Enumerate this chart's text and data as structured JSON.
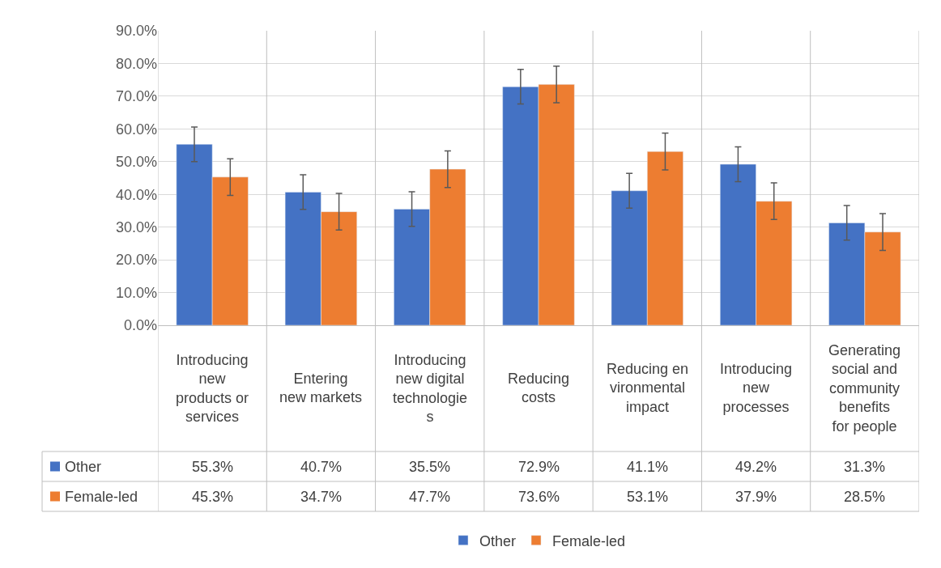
{
  "chart_data": {
    "type": "bar",
    "categories": [
      "Introducing new products or services",
      "Entering new markets",
      "Introducing new digital technologies",
      "Reducing costs",
      "Reducing environmental impact",
      "Introducing new processes",
      "Generating social and community benefits for people"
    ],
    "series": [
      {
        "name": "Other",
        "color": "#4472c4",
        "values": [
          55.3,
          40.7,
          35.5,
          72.9,
          41.1,
          49.2,
          31.3
        ],
        "errors": [
          5.3,
          5.3,
          5.3,
          5.3,
          5.3,
          5.3,
          5.3
        ],
        "value_labels": [
          "55.3%",
          "40.7%",
          "35.5%",
          "72.9%",
          "41.1%",
          "49.2%",
          "31.3%"
        ]
      },
      {
        "name": "Female-led",
        "color": "#ed7d31",
        "values": [
          45.3,
          34.7,
          47.7,
          73.6,
          53.1,
          37.9,
          28.5
        ],
        "errors": [
          5.6,
          5.6,
          5.6,
          5.6,
          5.6,
          5.6,
          5.6
        ],
        "value_labels": [
          "45.3%",
          "34.7%",
          "47.7%",
          "73.6%",
          "53.1%",
          "37.9%",
          "28.5%"
        ]
      }
    ],
    "ylim": [
      0,
      90
    ],
    "yticks": [
      {
        "value": 0,
        "label": "0.0%"
      },
      {
        "value": 10,
        "label": "10.0%"
      },
      {
        "value": 20,
        "label": "20.0%"
      },
      {
        "value": 30,
        "label": "30.0%"
      },
      {
        "value": 40,
        "label": "40.0%"
      },
      {
        "value": 50,
        "label": "50.0%"
      },
      {
        "value": 60,
        "label": "60.0%"
      },
      {
        "value": 70,
        "label": "70.0%"
      },
      {
        "value": 80,
        "label": "80.0%"
      },
      {
        "value": 90,
        "label": "90.0%"
      }
    ],
    "grid": true,
    "legend": "bottom"
  }
}
